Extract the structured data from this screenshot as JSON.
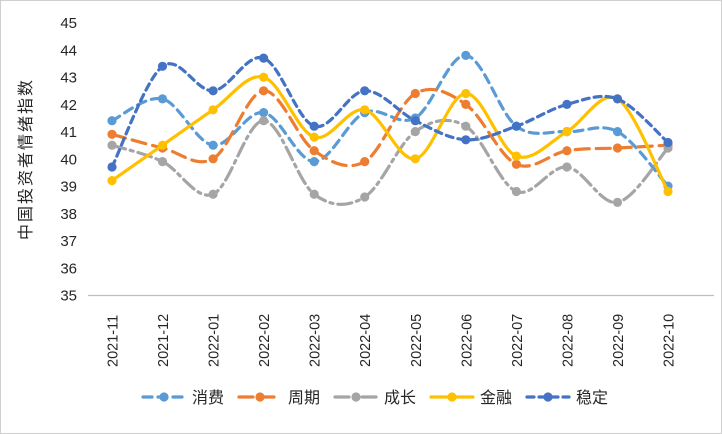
{
  "frame": {
    "background": "#FFFFFF",
    "border_color": "#CFCFCF",
    "axis_line_color": "#BFBFBF",
    "text_color": "#262626"
  },
  "chart_data": {
    "type": "line",
    "title": "",
    "xlabel": "",
    "ylabel": "中国投资者情绪指数",
    "ylim": [
      35,
      45
    ],
    "yticks": [
      45,
      44,
      43,
      42,
      41,
      40,
      39,
      38,
      37,
      36,
      35
    ],
    "grid": false,
    "smooth": true,
    "legend_position": "bottom",
    "categories": [
      "2021-11",
      "2021-12",
      "2022-01",
      "2022-02",
      "2022-03",
      "2022-04",
      "2022-05",
      "2022-06",
      "2022-07",
      "2022-08",
      "2022-09",
      "2022-10"
    ],
    "series": [
      {
        "name": "消费",
        "color": "#5B9BD5",
        "dash": "9 6",
        "values": [
          41.4,
          42.2,
          40.5,
          41.7,
          39.9,
          41.7,
          41.5,
          43.8,
          41.2,
          41.0,
          41.0,
          39.0
        ]
      },
      {
        "name": "周期",
        "color": "#ED7D31",
        "dash": "14 7",
        "values": [
          40.9,
          40.4,
          40.0,
          42.5,
          40.3,
          39.9,
          42.4,
          42.0,
          39.8,
          40.3,
          40.4,
          40.5
        ]
      },
      {
        "name": "成长",
        "color": "#A5A5A5",
        "dash": "14 5 3 5",
        "values": [
          40.5,
          39.9,
          38.7,
          41.4,
          38.7,
          38.6,
          41.0,
          41.2,
          38.8,
          39.7,
          38.4,
          40.4
        ]
      },
      {
        "name": "金融",
        "color": "#FFC000",
        "dash": "",
        "values": [
          39.2,
          40.5,
          41.8,
          43.0,
          40.8,
          41.8,
          40.0,
          42.4,
          40.1,
          41.0,
          42.2,
          38.8
        ]
      },
      {
        "name": "稳定",
        "color": "#4472C4",
        "dash": "7 5",
        "values": [
          39.7,
          43.4,
          42.5,
          43.7,
          41.2,
          42.5,
          41.4,
          40.7,
          41.2,
          42.0,
          42.2,
          40.6
        ]
      }
    ]
  }
}
